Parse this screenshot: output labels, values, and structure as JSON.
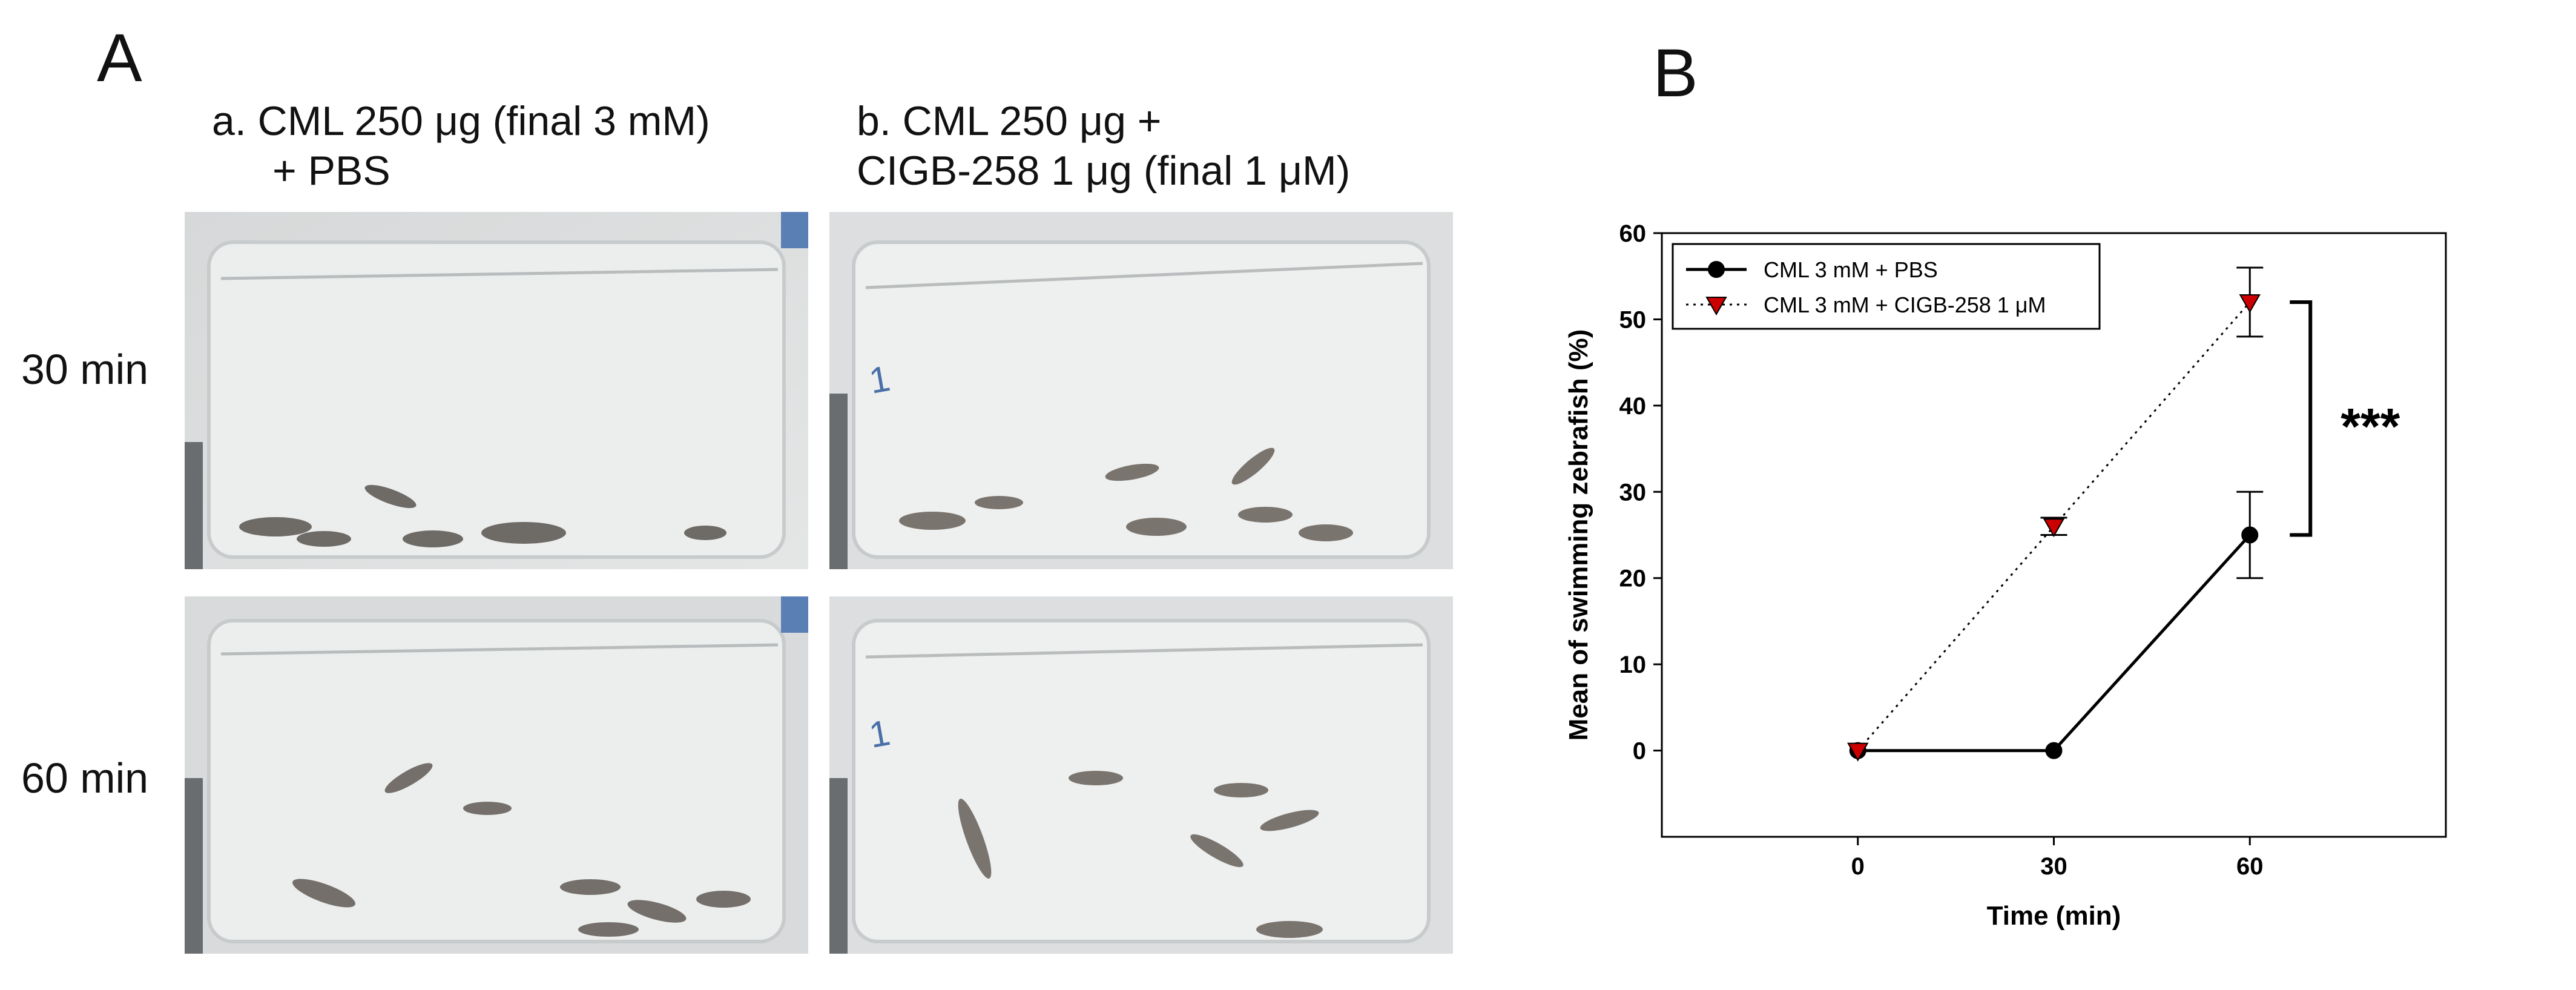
{
  "panel_a": {
    "letter": "A",
    "columns": [
      {
        "line1": "a. CML 250 μg (final 3 mM)",
        "line2": "+ PBS"
      },
      {
        "line1": "b. CML 250 μg +",
        "line2": "CIGB-258 1 μg (final 1 μM)"
      }
    ],
    "rows": [
      "30 min",
      "60 min"
    ],
    "photo_marks": [
      "1",
      "1"
    ]
  },
  "panel_b": {
    "letter": "B",
    "significance": "***"
  },
  "chart_data": {
    "type": "line",
    "xlabel": "Time (min)",
    "ylabel": "Mean of swimming zebrafish (%)",
    "x": [
      0,
      30,
      60
    ],
    "xlim": [
      -30,
      90
    ],
    "ylim": [
      -10,
      60
    ],
    "xticks": [
      0,
      30,
      60
    ],
    "yticks": [
      0,
      10,
      20,
      30,
      40,
      50,
      60
    ],
    "legend_position": "top-left",
    "grid": false,
    "series": [
      {
        "name": "CML 3 mM + PBS",
        "values": [
          0,
          0,
          25
        ],
        "errors": [
          0,
          0,
          5
        ],
        "color": "#000000",
        "marker": "circle",
        "line": "solid"
      },
      {
        "name": "CML 3 mM + CIGB-258 1 μM",
        "values": [
          0,
          26,
          52
        ],
        "errors": [
          0,
          1,
          4
        ],
        "color": "#cc0000",
        "marker": "triangle-down",
        "line": "dotted"
      }
    ]
  }
}
